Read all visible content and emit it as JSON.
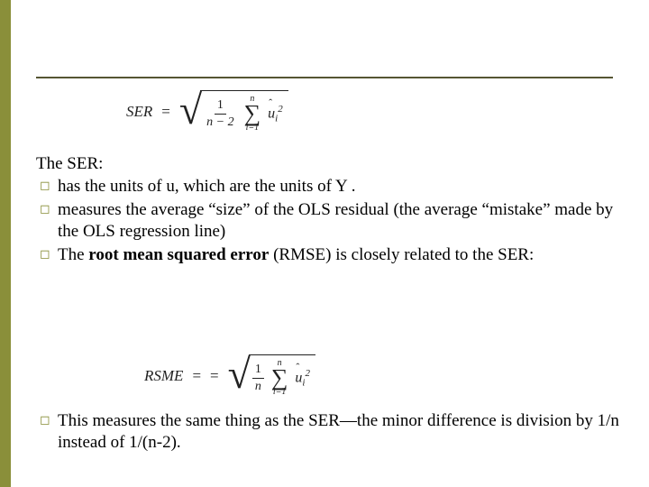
{
  "accent_color": "#8a8f3a",
  "rule_color": "#555533",
  "formula_top": {
    "lhs": "SER",
    "eq": "=",
    "frac_num": "1",
    "frac_den": "n − 2",
    "sigma_upper": "n",
    "sigma_lower": "i=1",
    "term_base": "u",
    "term_sub": "i",
    "term_sup": "2"
  },
  "formula_bottom": {
    "lhs": "RSME",
    "eq1": "=",
    "eq2": "=",
    "frac_num": "1",
    "frac_den": "n",
    "sigma_upper": "n",
    "sigma_lower": "i=1",
    "term_base": "u",
    "term_sub": "i",
    "term_sup": "2"
  },
  "intro": "The SER:",
  "bullets": [
    "has the units of u, which are the units of Y .",
    "measures the average “size” of the OLS residual (the average “mistake” made by the OLS regression line)",
    "The root mean squared error (RMSE) is closely related to the SER:"
  ],
  "bullet3_prefix": "The ",
  "bullet3_bold": "root mean squared error",
  "bullet3_suffix": " (RMSE) is closely related to the SER:",
  "last_bullet": "This measures the same thing as the SER—the minor difference is division by 1/n instead of 1/(n-2)."
}
